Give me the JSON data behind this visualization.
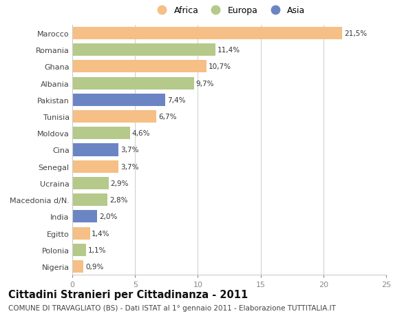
{
  "categories": [
    "Nigeria",
    "Polonia",
    "Egitto",
    "India",
    "Macedonia d/N.",
    "Ucraina",
    "Senegal",
    "Cina",
    "Moldova",
    "Tunisia",
    "Pakistan",
    "Albania",
    "Ghana",
    "Romania",
    "Marocco"
  ],
  "values": [
    0.9,
    1.1,
    1.4,
    2.0,
    2.8,
    2.9,
    3.7,
    3.7,
    4.6,
    6.7,
    7.4,
    9.7,
    10.7,
    11.4,
    21.5
  ],
  "colors": [
    "#f5bf85",
    "#b5c98a",
    "#f5bf85",
    "#6b85c4",
    "#b5c98a",
    "#b5c98a",
    "#f5bf85",
    "#6b85c4",
    "#b5c98a",
    "#f5bf85",
    "#6b85c4",
    "#b5c98a",
    "#f5bf85",
    "#b5c98a",
    "#f5bf85"
  ],
  "labels": [
    "0,9%",
    "1,1%",
    "1,4%",
    "2,0%",
    "2,8%",
    "2,9%",
    "3,7%",
    "3,7%",
    "4,6%",
    "6,7%",
    "7,4%",
    "9,7%",
    "10,7%",
    "11,4%",
    "21,5%"
  ],
  "legend_labels": [
    "Africa",
    "Europa",
    "Asia"
  ],
  "legend_colors": [
    "#f5bf85",
    "#b5c98a",
    "#6b85c4"
  ],
  "xlim": [
    0,
    25
  ],
  "xticks": [
    0,
    5,
    10,
    15,
    20,
    25
  ],
  "title": "Cittadini Stranieri per Cittadinanza - 2011",
  "subtitle": "COMUNE DI TRAVAGLIATO (BS) - Dati ISTAT al 1° gennaio 2011 - Elaborazione TUTTITALIA.IT",
  "background_color": "#ffffff",
  "bar_height": 0.75,
  "title_fontsize": 10.5,
  "subtitle_fontsize": 7.5,
  "label_fontsize": 7.5,
  "ytick_fontsize": 8,
  "xtick_fontsize": 8
}
